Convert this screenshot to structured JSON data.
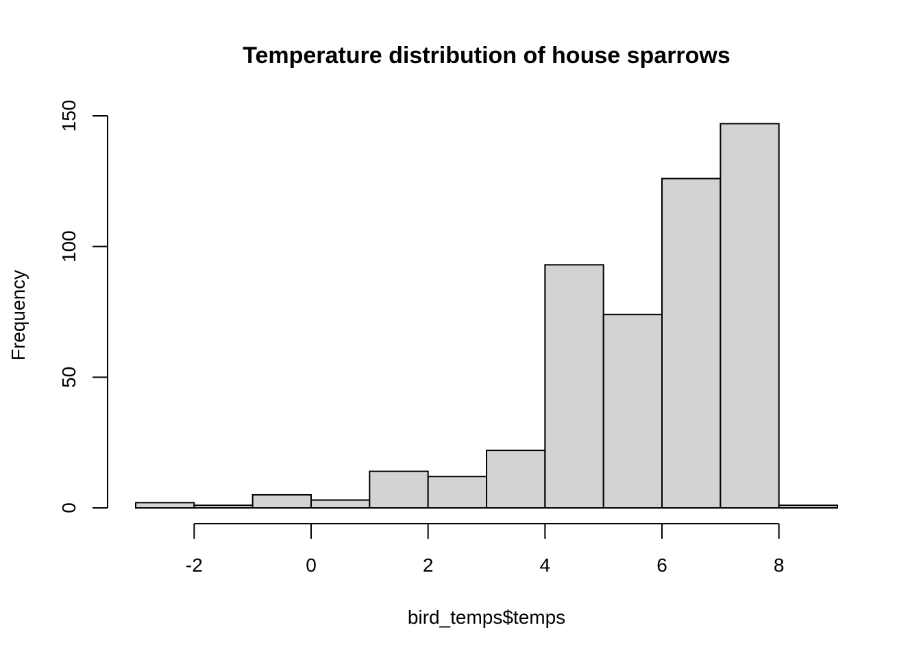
{
  "chart_data": {
    "type": "bar",
    "title": "Temperature distribution of house sparrows",
    "xlabel": "bird_temps$temps",
    "ylabel": "Frequency",
    "bins": [
      {
        "start": -3,
        "end": -2,
        "count": 2
      },
      {
        "start": -2,
        "end": -1,
        "count": 1
      },
      {
        "start": -1,
        "end": 0,
        "count": 5
      },
      {
        "start": 0,
        "end": 1,
        "count": 3
      },
      {
        "start": 1,
        "end": 2,
        "count": 14
      },
      {
        "start": 2,
        "end": 3,
        "count": 12
      },
      {
        "start": 3,
        "end": 4,
        "count": 22
      },
      {
        "start": 4,
        "end": 5,
        "count": 93
      },
      {
        "start": 5,
        "end": 6,
        "count": 74
      },
      {
        "start": 6,
        "end": 7,
        "count": 126
      },
      {
        "start": 7,
        "end": 8,
        "count": 147
      },
      {
        "start": 8,
        "end": 9,
        "count": 1
      }
    ],
    "xlim": [
      -3,
      9
    ],
    "ylim": [
      0,
      150
    ],
    "x_ticks": [
      -2,
      0,
      2,
      4,
      6,
      8
    ],
    "y_ticks": [
      0,
      50,
      100,
      150
    ],
    "grid": false,
    "bar_color": "#d3d3d3",
    "border_color": "#000000"
  }
}
